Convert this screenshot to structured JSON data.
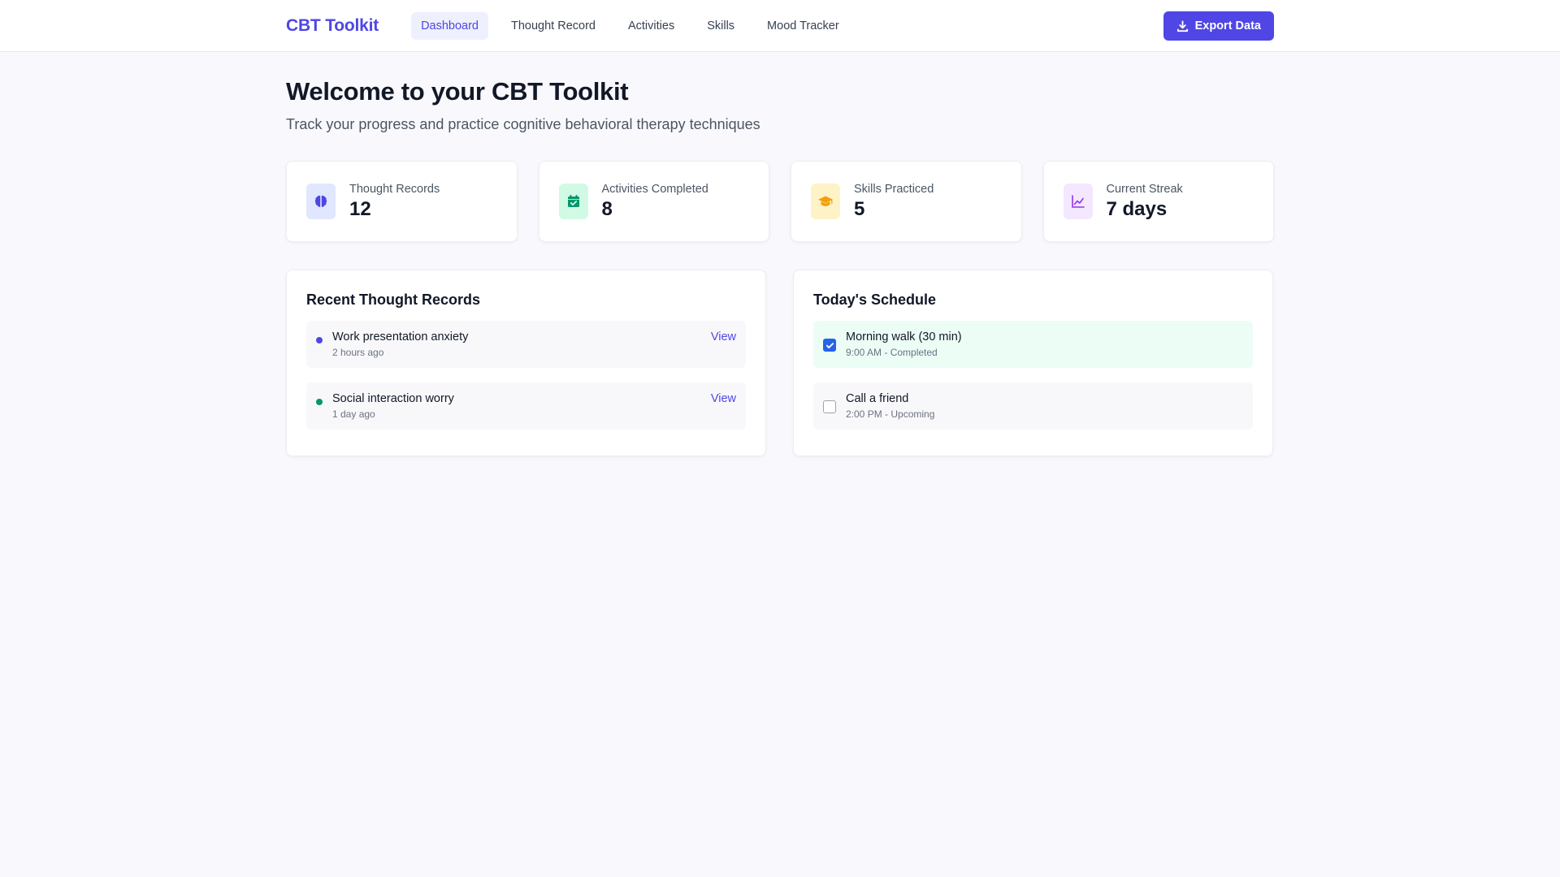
{
  "header": {
    "brand": "CBT Toolkit",
    "nav": [
      {
        "label": "Dashboard",
        "active": true
      },
      {
        "label": "Thought Record",
        "active": false
      },
      {
        "label": "Activities",
        "active": false
      },
      {
        "label": "Skills",
        "active": false
      },
      {
        "label": "Mood Tracker",
        "active": false
      }
    ],
    "export_label": "Export Data",
    "export_icon": "download-icon"
  },
  "page": {
    "title": "Welcome to your CBT Toolkit",
    "subtitle": "Track your progress and practice cognitive behavioral therapy techniques"
  },
  "stats": [
    {
      "label": "Thought Records",
      "value": "12",
      "icon": "brain-icon",
      "icon_bg": "#e0e7ff",
      "icon_color": "#4f46e5"
    },
    {
      "label": "Activities Completed",
      "value": "8",
      "icon": "calendar-check-icon",
      "icon_bg": "#d1fae5",
      "icon_color": "#059669"
    },
    {
      "label": "Skills Practiced",
      "value": "5",
      "icon": "graduation-cap-icon",
      "icon_bg": "#fef3c7",
      "icon_color": "#f59e0b"
    },
    {
      "label": "Current Streak",
      "value": "7 days",
      "icon": "chart-line-icon",
      "icon_bg": "#f3e8ff",
      "icon_color": "#9333ea"
    }
  ],
  "recent_records": {
    "title": "Recent Thought Records",
    "items": [
      {
        "title": "Work presentation anxiety",
        "time": "2 hours ago",
        "dot_color": "#4f46e5",
        "action": "View"
      },
      {
        "title": "Social interaction worry",
        "time": "1 day ago",
        "dot_color": "#059669",
        "action": "View"
      }
    ]
  },
  "schedule": {
    "title": "Today's Schedule",
    "items": [
      {
        "title": "Morning walk (30 min)",
        "detail": "9:00 AM - Completed",
        "checked": true
      },
      {
        "title": "Call a friend",
        "detail": "2:00 PM - Upcoming",
        "checked": false
      }
    ]
  }
}
